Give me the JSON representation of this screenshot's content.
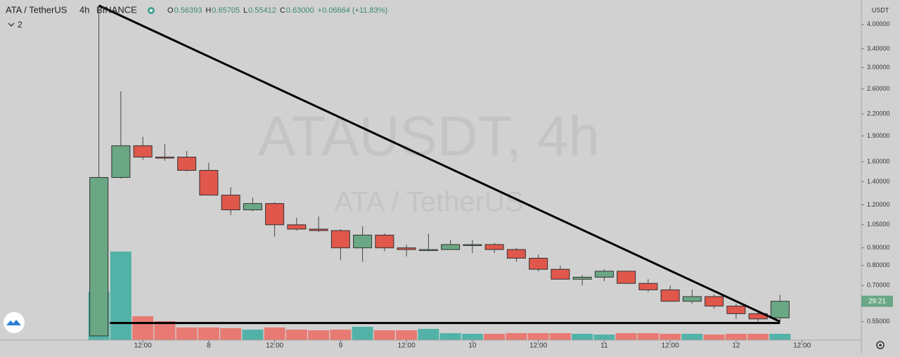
{
  "chart_data": {
    "type": "candlestick",
    "symbol": "ATA / TetherUS",
    "interval": "4h",
    "exchange": "BINANCE",
    "ohlc_header": [
      {
        "label": "O",
        "value": "0.56393"
      },
      {
        "label": "H",
        "value": "0.65705"
      },
      {
        "label": "L",
        "value": "0.55412"
      },
      {
        "label": "C",
        "value": "0.63000"
      }
    ],
    "change": "+0.06664 (+11.83%)",
    "indicator_count": "2",
    "watermark": "ATAUSDT, 4h",
    "watermark_sub": "ATA / TetherUS",
    "y_axis_label": "USDT",
    "countdown": "29:21",
    "log_scale": true,
    "up_color": "#6aa784",
    "down_color": "#e0574b",
    "volume_up_color": "#52b2a8",
    "volume_down_color": "#e87a74",
    "candles": {
      "open": [
        0.5,
        1.44,
        1.78,
        1.65,
        1.65,
        1.51,
        1.28,
        1.16,
        1.21,
        1.05,
        1.02,
        1.01,
        0.9,
        0.98,
        0.9,
        0.89,
        0.89,
        0.92,
        0.92,
        0.89,
        0.84,
        0.78,
        0.73,
        0.74,
        0.77,
        0.71,
        0.68,
        0.63,
        0.65,
        0.61,
        0.58,
        0.56393
      ],
      "high": [
        4.54,
        2.56,
        1.89,
        1.8,
        1.72,
        1.59,
        1.35,
        1.26,
        1.22,
        1.1,
        1.11,
        1.02,
        1.04,
        0.99,
        0.92,
        0.99,
        0.95,
        0.95,
        0.93,
        0.9,
        0.86,
        0.8,
        0.75,
        0.78,
        0.77,
        0.73,
        0.7,
        0.68,
        0.66,
        0.62,
        0.59,
        0.65705
      ],
      "low": [
        0.5,
        1.43,
        1.62,
        1.61,
        1.5,
        1.28,
        1.12,
        1.15,
        0.97,
        1.01,
        1.0,
        0.83,
        0.82,
        0.88,
        0.85,
        0.88,
        0.89,
        0.87,
        0.87,
        0.82,
        0.77,
        0.73,
        0.7,
        0.72,
        0.71,
        0.67,
        0.63,
        0.62,
        0.6,
        0.56,
        0.55,
        0.55412
      ],
      "close": [
        1.44,
        1.78,
        1.65,
        1.64,
        1.51,
        1.28,
        1.16,
        1.21,
        1.05,
        1.02,
        1.01,
        0.9,
        0.98,
        0.9,
        0.89,
        0.89,
        0.92,
        0.92,
        0.89,
        0.84,
        0.78,
        0.73,
        0.74,
        0.77,
        0.71,
        0.68,
        0.63,
        0.65,
        0.61,
        0.58,
        0.56,
        0.63
      ],
      "volume": [
        69,
        126,
        34,
        27,
        18,
        18,
        17,
        15,
        18,
        15,
        14,
        15,
        19,
        14,
        14,
        16,
        10,
        9,
        9,
        10,
        10,
        10,
        9,
        8,
        10,
        10,
        9,
        9,
        8,
        9,
        9,
        9
      ]
    },
    "volume_lim": [
      0,
      140
    ],
    "xlim": [
      -4.5,
      34.7
    ],
    "xticks": [
      {
        "value": 2,
        "label": "12:00"
      },
      {
        "value": 5,
        "label": "8"
      },
      {
        "value": 8,
        "label": "12:00"
      },
      {
        "value": 11,
        "label": "9"
      },
      {
        "value": 14,
        "label": "12:00"
      },
      {
        "value": 17,
        "label": "10"
      },
      {
        "value": 20,
        "label": "12:00"
      },
      {
        "value": 23,
        "label": "11"
      },
      {
        "value": 26,
        "label": "12:00"
      },
      {
        "value": 29,
        "label": "12"
      },
      {
        "value": 32,
        "label": "12:00"
      }
    ],
    "ylim": [
      0.486,
      4.71
    ],
    "yticks": [
      {
        "value": 4,
        "label": "4.00000"
      },
      {
        "value": 3.4,
        "label": "3.40000"
      },
      {
        "value": 3,
        "label": "3.00000"
      },
      {
        "value": 2.6,
        "label": "2.60000"
      },
      {
        "value": 2.2,
        "label": "2.20000"
      },
      {
        "value": 1.9,
        "label": "1.90000"
      },
      {
        "value": 1.6,
        "label": "1.60000"
      },
      {
        "value": 1.4,
        "label": "1.40000"
      },
      {
        "value": 1.2,
        "label": "1.20000"
      },
      {
        "value": 1.05,
        "label": "1.05000"
      },
      {
        "value": 0.9,
        "label": "0.90000"
      },
      {
        "value": 0.8,
        "label": "0.80000"
      },
      {
        "value": 0.7,
        "label": "0.70000"
      },
      {
        "value": 0.55,
        "label": "0.55000"
      }
    ],
    "trendlines": [
      {
        "x": [
          0,
          31
        ],
        "y": [
          4.54,
          0.55
        ]
      },
      {
        "x": [
          0.5,
          31
        ],
        "y": [
          0.545,
          0.545
        ]
      }
    ]
  }
}
